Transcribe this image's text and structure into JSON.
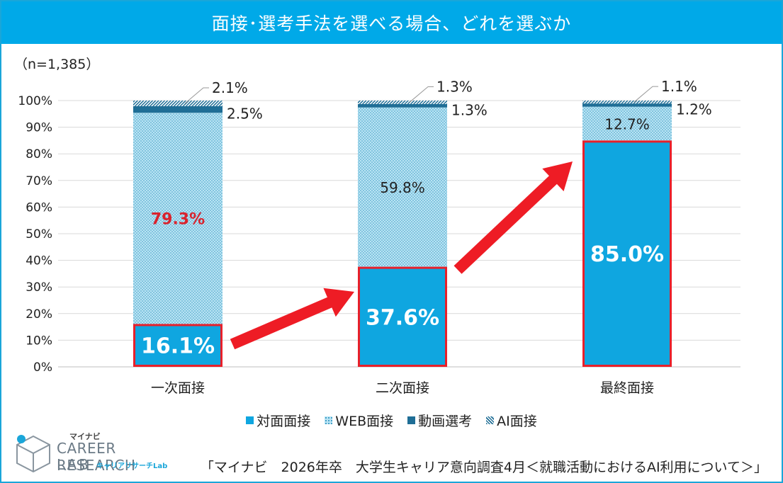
{
  "title": "面接･選考手法を選べる場合、どれを選ぶか",
  "sample_note": "（n=1,385）",
  "source": "「マイナビ　2026年卒　大学生キャリア意向調査4月＜就職活動におけるAI利用について＞」",
  "logo": {
    "brand": "マイナビ",
    "line1": "CAREER RESEARCH",
    "line2": "LAB",
    "sub": "キャリアリサーチLab"
  },
  "colors": {
    "header": "#00a9e8",
    "face_to_face": "#0fa6e0",
    "web": "#b9e4f4",
    "video": "#1f6e96",
    "highlight_box": "#e8202a",
    "arrow": "#ee1c25",
    "web_label_highlight": "#d9232d"
  },
  "chart_data": {
    "type": "bar",
    "stacked": true,
    "categories": [
      "一次面接",
      "二次面接",
      "最終面接"
    ],
    "series": [
      {
        "name": "対面面接",
        "values": [
          16.1,
          37.6,
          85.0
        ],
        "labels": [
          "16.1%",
          "37.6%",
          "85.0%"
        ]
      },
      {
        "name": "WEB面接",
        "values": [
          79.3,
          59.8,
          12.7
        ],
        "labels": [
          "79.3%",
          "59.8%",
          "12.7%"
        ]
      },
      {
        "name": "動画選考",
        "values": [
          2.5,
          1.3,
          1.2
        ],
        "labels": [
          "2.5%",
          "1.3%",
          "1.2%"
        ]
      },
      {
        "name": "AI面接",
        "values": [
          2.1,
          1.3,
          1.1
        ],
        "labels": [
          "2.1%",
          "1.3%",
          "1.1%"
        ]
      }
    ],
    "y_ticks": [
      "0%",
      "10%",
      "20%",
      "30%",
      "40%",
      "50%",
      "60%",
      "70%",
      "80%",
      "90%",
      "100%"
    ],
    "ylim": [
      0,
      100
    ],
    "grid": true,
    "legend_position": "bottom",
    "annotations": "red outline boxes around 対面面接 segments, red arrows pointing upward between bars"
  }
}
